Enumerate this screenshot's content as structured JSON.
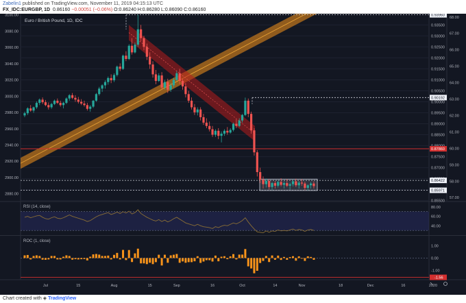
{
  "header": {
    "author": "Zabelin1",
    "published": "published on TradingView.com, November 11, 2019 04:15:13 UTC",
    "symbol": "FX_IDC:EURGBP, 1D",
    "last": "0.86160",
    "change": "−0.00051 (−0.06%)",
    "ohlc": "O:0.86240 H:0.86280 L:0.86090 C:0.86160"
  },
  "footer": {
    "prefix": "Chart created with",
    "brand": "TradingView"
  },
  "colors": {
    "background": "#131722",
    "bull": "#26a69a",
    "bear": "#ef5350",
    "rsi_line": "#8a6e35",
    "roc_bar": "#f7931a",
    "trendline": "#f7931a",
    "channel": "#b71c1c",
    "resistance": "#d32f2f"
  },
  "chart_data": {
    "type": "candlestick",
    "title": "Euro / British Pound, 1D, IDC",
    "x_tick_labels": [
      "Jul",
      "15",
      "Aug",
      "15",
      "Sep",
      "16",
      "Oct",
      "14",
      "Nov",
      "18",
      "Dec",
      "16",
      "2020"
    ],
    "left_y_axis": {
      "labels": [
        "3100.00",
        "3080.00",
        "3060.00",
        "3040.00",
        "3020.00",
        "3000.00",
        "2980.00",
        "2960.00",
        "2940.00",
        "2920.00",
        "2900.00",
        "2880.00"
      ],
      "range": [
        2871.3,
        3101.4
      ]
    },
    "right_y_axis": {
      "labels": [
        "0.93500",
        "0.93000",
        "0.92500",
        "0.92000",
        "0.91500",
        "0.91000",
        "0.90500",
        "0.90000",
        "0.89500",
        "0.89000",
        "0.88500",
        "0.88000",
        "0.87500",
        "0.87000",
        "0.86500",
        "0.86000",
        "0.85500"
      ],
      "range": [
        0.8549,
        0.9401
      ]
    },
    "rsi_axis": {
      "labels": [
        "68.00",
        "67.00",
        "66.00",
        "65.00",
        "64.00",
        "63.00",
        "62.00",
        "61.00",
        "60.00",
        "59.00",
        "58.00",
        "57.00"
      ],
      "range": [
        56.8,
        68.2
      ]
    },
    "price_labels": [
      {
        "value": 0.9396,
        "text": "0.93960",
        "style": "dashed"
      },
      {
        "value": 0.90192,
        "text": "0.90192",
        "style": "dashed"
      },
      {
        "value": 0.8786,
        "text": "0.87860",
        "style": "resistance"
      },
      {
        "value": 0.86422,
        "text": "0.86422",
        "style": "dashed"
      },
      {
        "value": 0.85971,
        "text": "0.85971",
        "style": "dashed"
      }
    ],
    "candles": {
      "start_index": 0,
      "spacing_days": 1,
      "ohlc": [
        [
          0.8938,
          0.8955,
          0.893,
          0.8948
        ],
        [
          0.8948,
          0.8975,
          0.894,
          0.897
        ],
        [
          0.897,
          0.8985,
          0.8955,
          0.896
        ],
        [
          0.896,
          0.8978,
          0.895,
          0.8975
        ],
        [
          0.8975,
          0.9002,
          0.8968,
          0.8995
        ],
        [
          0.8995,
          0.9015,
          0.8985,
          0.901
        ],
        [
          0.901,
          0.902,
          0.899,
          0.8998
        ],
        [
          0.8998,
          0.9008,
          0.898,
          0.8985
        ],
        [
          0.8985,
          0.8997,
          0.8965,
          0.8975
        ],
        [
          0.8975,
          0.8995,
          0.8968,
          0.899
        ],
        [
          0.899,
          0.901,
          0.8985,
          0.9005
        ],
        [
          0.9005,
          0.9015,
          0.899,
          0.8995
        ],
        [
          0.8995,
          0.9005,
          0.8978,
          0.8985
        ],
        [
          0.8985,
          0.9,
          0.897,
          0.8995
        ],
        [
          0.8995,
          0.902,
          0.899,
          0.9015
        ],
        [
          0.9015,
          0.9035,
          0.9005,
          0.903
        ],
        [
          0.903,
          0.904,
          0.9012,
          0.9018
        ],
        [
          0.9018,
          0.903,
          0.9,
          0.901
        ],
        [
          0.901,
          0.9022,
          0.8992,
          0.9
        ],
        [
          0.9,
          0.9012,
          0.8985,
          0.8992
        ],
        [
          0.8992,
          0.9005,
          0.8978,
          0.8985
        ],
        [
          0.8985,
          0.8995,
          0.896,
          0.8968
        ],
        [
          0.8968,
          0.8985,
          0.8955,
          0.8978
        ],
        [
          0.8978,
          0.9008,
          0.8972,
          0.9005
        ],
        [
          0.9005,
          0.904,
          0.9,
          0.9035
        ],
        [
          0.9035,
          0.9068,
          0.9028,
          0.906
        ],
        [
          0.906,
          0.908,
          0.9045,
          0.9075
        ],
        [
          0.9075,
          0.9098,
          0.906,
          0.909
        ],
        [
          0.909,
          0.9115,
          0.9078,
          0.9108
        ],
        [
          0.9108,
          0.9125,
          0.9085,
          0.9098
        ],
        [
          0.9098,
          0.913,
          0.909,
          0.9122
        ],
        [
          0.9122,
          0.9165,
          0.9115,
          0.916
        ],
        [
          0.916,
          0.9175,
          0.914,
          0.915
        ],
        [
          0.915,
          0.9215,
          0.9145,
          0.921
        ],
        [
          0.921,
          0.923,
          0.9185,
          0.9195
        ],
        [
          0.9195,
          0.9262,
          0.919,
          0.9255
        ],
        [
          0.9255,
          0.929,
          0.9215,
          0.9225
        ],
        [
          0.9225,
          0.927,
          0.922,
          0.926
        ],
        [
          0.926,
          0.9396,
          0.925,
          0.933
        ],
        [
          0.933,
          0.935,
          0.9275,
          0.929
        ],
        [
          0.929,
          0.93,
          0.9235,
          0.925
        ],
        [
          0.925,
          0.9265,
          0.919,
          0.9205
        ],
        [
          0.9205,
          0.9225,
          0.915,
          0.917
        ],
        [
          0.917,
          0.9185,
          0.911,
          0.9125
        ],
        [
          0.9125,
          0.9145,
          0.908,
          0.9095
        ],
        [
          0.9095,
          0.913,
          0.909,
          0.912
        ],
        [
          0.912,
          0.9135,
          0.9055,
          0.9065
        ],
        [
          0.9065,
          0.91,
          0.9055,
          0.909
        ],
        [
          0.909,
          0.9105,
          0.904,
          0.9055
        ],
        [
          0.9055,
          0.9085,
          0.9045,
          0.9075
        ],
        [
          0.9075,
          0.911,
          0.9065,
          0.91
        ],
        [
          0.91,
          0.914,
          0.9095,
          0.913
        ],
        [
          0.913,
          0.915,
          0.908,
          0.9095
        ],
        [
          0.9095,
          0.9105,
          0.9055,
          0.907
        ],
        [
          0.907,
          0.9085,
          0.902,
          0.9035
        ],
        [
          0.9035,
          0.905,
          0.8995,
          0.9005
        ],
        [
          0.9005,
          0.902,
          0.8965,
          0.8975
        ],
        [
          0.8975,
          0.899,
          0.894,
          0.8952
        ],
        [
          0.8952,
          0.8975,
          0.8938,
          0.8965
        ],
        [
          0.8965,
          0.8975,
          0.8915,
          0.893
        ],
        [
          0.893,
          0.8945,
          0.8895,
          0.8905
        ],
        [
          0.8905,
          0.8925,
          0.888,
          0.889
        ],
        [
          0.889,
          0.891,
          0.8865,
          0.8875
        ],
        [
          0.8875,
          0.889,
          0.884,
          0.885
        ],
        [
          0.885,
          0.8875,
          0.884,
          0.8868
        ],
        [
          0.8868,
          0.888,
          0.883,
          0.8845
        ],
        [
          0.8845,
          0.8865,
          0.8815,
          0.8855
        ],
        [
          0.8855,
          0.8875,
          0.8845,
          0.8868
        ],
        [
          0.8868,
          0.8885,
          0.885,
          0.886
        ],
        [
          0.886,
          0.888,
          0.8855,
          0.8872
        ],
        [
          0.8872,
          0.8905,
          0.8865,
          0.89
        ],
        [
          0.89,
          0.892,
          0.888,
          0.889
        ],
        [
          0.889,
          0.8925,
          0.8885,
          0.8915
        ],
        [
          0.8915,
          0.8945,
          0.8905,
          0.894
        ],
        [
          0.894,
          0.9019,
          0.8935,
          0.9005
        ],
        [
          0.9005,
          0.9015,
          0.893,
          0.8945
        ],
        [
          0.8945,
          0.8955,
          0.8855,
          0.887
        ],
        [
          0.887,
          0.888,
          0.8755,
          0.877
        ],
        [
          0.877,
          0.878,
          0.866,
          0.868
        ],
        [
          0.868,
          0.87,
          0.863,
          0.8645
        ],
        [
          0.8645,
          0.866,
          0.8605,
          0.8625
        ],
        [
          0.8625,
          0.865,
          0.861,
          0.864
        ],
        [
          0.864,
          0.8648,
          0.86,
          0.8612
        ],
        [
          0.8612,
          0.8635,
          0.8598,
          0.863
        ],
        [
          0.863,
          0.864,
          0.8605,
          0.8618
        ],
        [
          0.8618,
          0.8642,
          0.861,
          0.8635
        ],
        [
          0.8635,
          0.8652,
          0.8615,
          0.8622
        ],
        [
          0.8622,
          0.8638,
          0.8605,
          0.863
        ],
        [
          0.863,
          0.8648,
          0.8612,
          0.8618
        ],
        [
          0.8618,
          0.8632,
          0.86,
          0.8625
        ],
        [
          0.8625,
          0.8645,
          0.8615,
          0.8638
        ],
        [
          0.8638,
          0.865,
          0.8612,
          0.862
        ],
        [
          0.862,
          0.864,
          0.8605,
          0.8632
        ],
        [
          0.8632,
          0.8648,
          0.8618,
          0.8628
        ],
        [
          0.8628,
          0.8636,
          0.8598,
          0.8608
        ],
        [
          0.8608,
          0.8625,
          0.8597,
          0.862
        ],
        [
          0.862,
          0.8635,
          0.8605,
          0.8628
        ],
        [
          0.8628,
          0.8638,
          0.8605,
          0.8616
        ]
      ]
    },
    "rsi": {
      "label": "RSI (14, close)",
      "levels": [
        70,
        30
      ],
      "axis_labels": [
        "80.00",
        "60.00",
        "40.00"
      ],
      "range": [
        20,
        90
      ],
      "values": [
        58,
        60,
        57,
        59,
        61,
        62,
        58,
        55,
        54,
        57,
        59,
        56,
        55,
        57,
        60,
        63,
        60,
        58,
        56,
        54,
        52,
        49,
        51,
        55,
        59,
        62,
        64,
        66,
        68,
        64,
        66,
        69,
        66,
        70,
        67,
        71,
        65,
        68,
        74,
        66,
        62,
        58,
        55,
        52,
        50,
        53,
        49,
        52,
        48,
        51,
        55,
        58,
        54,
        50,
        46,
        44,
        42,
        40,
        43,
        40,
        38,
        37,
        36,
        34,
        38,
        36,
        39,
        41,
        40,
        43,
        46,
        44,
        47,
        51,
        57,
        48,
        40,
        33,
        27,
        26,
        25,
        29,
        26,
        29,
        28,
        31,
        29,
        30,
        29,
        31,
        33,
        30,
        32,
        31,
        28,
        31,
        32,
        30
      ]
    },
    "roc": {
      "label": "ROC (1, close)",
      "axis_labels": [
        "1.00",
        "0.00",
        "-1.00",
        "-1.56"
      ],
      "range": [
        -1.75,
        1.8
      ],
      "values": [
        0.22,
        0.25,
        -0.11,
        0.17,
        0.22,
        0.17,
        -0.13,
        -0.14,
        -0.11,
        0.17,
        0.17,
        -0.11,
        -0.11,
        0.11,
        0.22,
        0.17,
        -0.13,
        -0.09,
        -0.11,
        -0.09,
        -0.08,
        -0.19,
        0.11,
        0.3,
        0.33,
        0.28,
        0.17,
        0.17,
        0.2,
        -0.11,
        0.26,
        0.42,
        -0.11,
        0.66,
        -0.16,
        0.65,
        -0.32,
        0.38,
        0.76,
        -0.43,
        -0.43,
        -0.49,
        -0.38,
        -0.49,
        -0.33,
        0.27,
        -0.6,
        0.27,
        -0.38,
        0.22,
        0.27,
        0.33,
        -0.38,
        -0.27,
        -0.38,
        -0.33,
        -0.33,
        -0.26,
        0.15,
        -0.39,
        -0.28,
        -0.17,
        -0.17,
        -0.28,
        0.2,
        -0.26,
        0.11,
        0.15,
        -0.09,
        0.14,
        0.32,
        -0.11,
        0.28,
        0.28,
        0.73,
        -0.67,
        -0.84,
        -1.23,
        -1.03,
        -0.4,
        -0.23,
        0.17,
        -0.32,
        0.21,
        -0.14,
        0.2,
        -0.15,
        0.09,
        -0.14,
        0.08,
        0.15,
        -0.21,
        0.14,
        -0.05,
        -0.23,
        0.14,
        0.09,
        -0.14
      ]
    }
  }
}
